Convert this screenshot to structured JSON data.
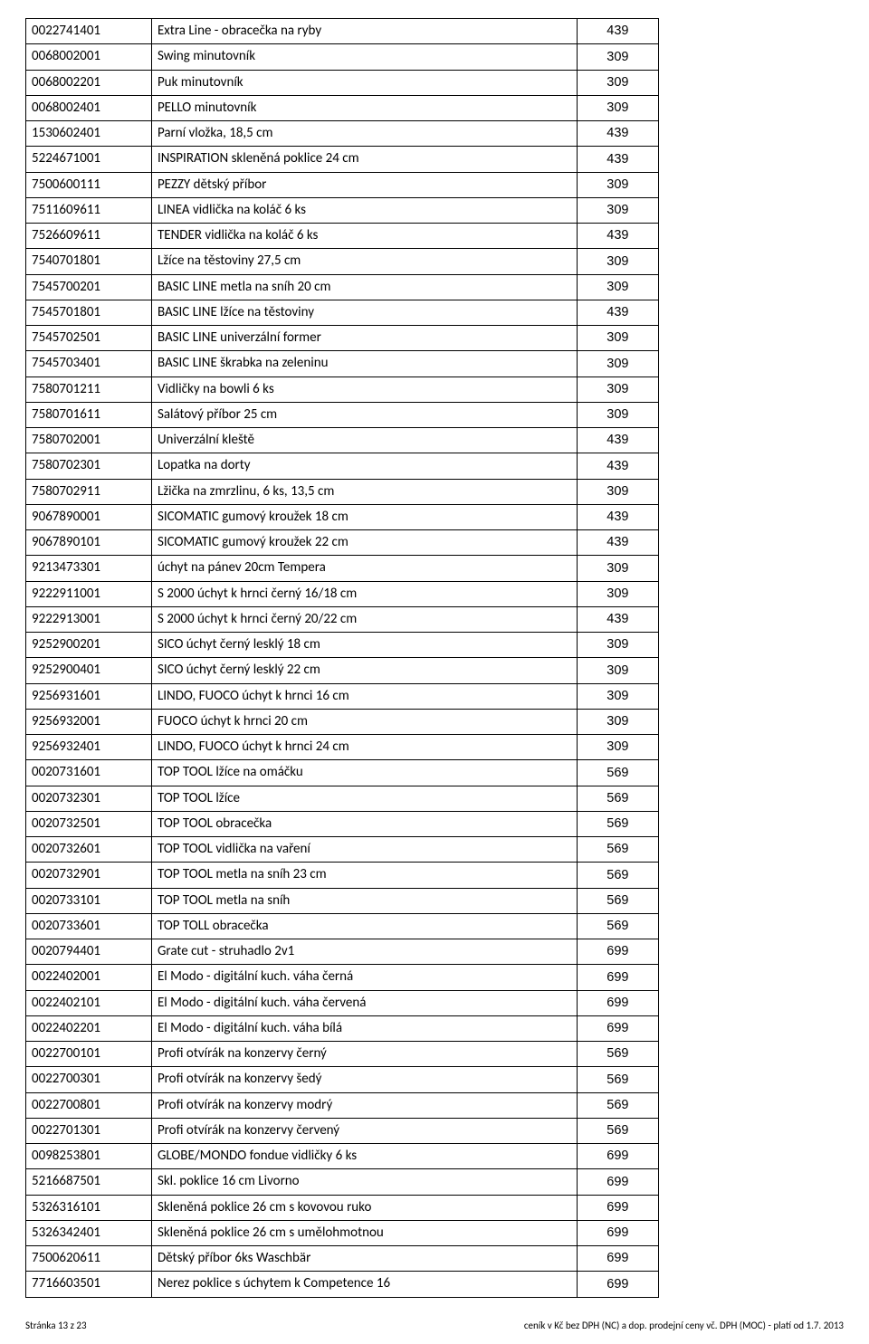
{
  "table": {
    "rows": [
      {
        "code": "0022741401",
        "desc": "Extra Line - obracečka na ryby",
        "price": "439"
      },
      {
        "code": "0068002001",
        "desc": "Swing minutovník",
        "price": "309"
      },
      {
        "code": "0068002201",
        "desc": "Puk minutovník",
        "price": "309"
      },
      {
        "code": "0068002401",
        "desc": "PELLO minutovník",
        "price": "309"
      },
      {
        "code": "1530602401",
        "desc": "Parní vložka, 18,5 cm",
        "price": "439"
      },
      {
        "code": "5224671001",
        "desc": "INSPIRATION skleněná poklice 24 cm",
        "price": "439"
      },
      {
        "code": "7500600111",
        "desc": "PEZZY dětský příbor",
        "price": "309"
      },
      {
        "code": "7511609611",
        "desc": "LINEA vidlička na koláč 6 ks",
        "price": "309"
      },
      {
        "code": "7526609611",
        "desc": "TENDER vidlička na koláč 6 ks",
        "price": "439"
      },
      {
        "code": "7540701801",
        "desc": "Lžíce na těstoviny 27,5 cm",
        "price": "309"
      },
      {
        "code": "7545700201",
        "desc": "BASIC LINE metla na sníh 20 cm",
        "price": "309"
      },
      {
        "code": "7545701801",
        "desc": "BASIC LINE lžíce na těstoviny",
        "price": "439"
      },
      {
        "code": "7545702501",
        "desc": "BASIC LINE univerzální former",
        "price": "309"
      },
      {
        "code": "7545703401",
        "desc": "BASIC LINE škrabka na zeleninu",
        "price": "309"
      },
      {
        "code": "7580701211",
        "desc": "Vidličky na bowli 6 ks",
        "price": "309"
      },
      {
        "code": "7580701611",
        "desc": "Salátový příbor 25 cm",
        "price": "309"
      },
      {
        "code": "7580702001",
        "desc": "Univerzální kleště",
        "price": "439"
      },
      {
        "code": "7580702301",
        "desc": "Lopatka na dorty",
        "price": "439"
      },
      {
        "code": "7580702911",
        "desc": "Lžička na zmrzlinu, 6 ks, 13,5 cm",
        "price": "309"
      },
      {
        "code": "9067890001",
        "desc": "SICOMATIC gumový kroužek 18 cm",
        "price": "439"
      },
      {
        "code": "9067890101",
        "desc": "SICOMATIC gumový kroužek 22 cm",
        "price": "439"
      },
      {
        "code": "9213473301",
        "desc": "úchyt na pánev 20cm Tempera",
        "price": "309"
      },
      {
        "code": "9222911001",
        "desc": "S 2000 úchyt k hrnci černý 16/18 cm",
        "price": "309"
      },
      {
        "code": "9222913001",
        "desc": "S 2000 úchyt k hrnci černý 20/22 cm",
        "price": "439"
      },
      {
        "code": "9252900201",
        "desc": "SICO úchyt černý lesklý 18 cm",
        "price": "309"
      },
      {
        "code": "9252900401",
        "desc": "SICO úchyt černý lesklý 22 cm",
        "price": "309"
      },
      {
        "code": "9256931601",
        "desc": "LINDO, FUOCO úchyt k hrnci 16 cm",
        "price": "309"
      },
      {
        "code": "9256932001",
        "desc": "FUOCO úchyt k hrnci 20 cm",
        "price": "309"
      },
      {
        "code": "9256932401",
        "desc": "LINDO, FUOCO úchyt k hrnci 24 cm",
        "price": "309"
      },
      {
        "code": "0020731601",
        "desc": "TOP TOOL lžíce na omáčku",
        "price": "569"
      },
      {
        "code": "0020732301",
        "desc": "TOP TOOL lžíce",
        "price": "569"
      },
      {
        "code": "0020732501",
        "desc": "TOP TOOL obracečka",
        "price": "569"
      },
      {
        "code": "0020732601",
        "desc": "TOP TOOL vidlička na vaření",
        "price": "569"
      },
      {
        "code": "0020732901",
        "desc": "TOP TOOL metla na sníh 23 cm",
        "price": "569"
      },
      {
        "code": "0020733101",
        "desc": "TOP TOOL metla na sníh",
        "price": "569"
      },
      {
        "code": "0020733601",
        "desc": "TOP TOLL obracečka",
        "price": "569"
      },
      {
        "code": "0020794401",
        "desc": "Grate cut - struhadlo 2v1",
        "price": "699"
      },
      {
        "code": "0022402001",
        "desc": "El Modo - digitální kuch. váha černá",
        "price": "699"
      },
      {
        "code": "0022402101",
        "desc": "El Modo - digitální kuch. váha červená",
        "price": "699"
      },
      {
        "code": "0022402201",
        "desc": "El Modo - digitální kuch. váha bílá",
        "price": "699"
      },
      {
        "code": "0022700101",
        "desc": "Profi otvírák na konzervy černý",
        "price": "569"
      },
      {
        "code": "0022700301",
        "desc": "Profi otvírák na konzervy šedý",
        "price": "569"
      },
      {
        "code": "0022700801",
        "desc": "Profi otvírák na konzervy modrý",
        "price": "569"
      },
      {
        "code": "0022701301",
        "desc": "Profi otvírák na konzervy červený",
        "price": "569"
      },
      {
        "code": "0098253801",
        "desc": "GLOBE/MONDO fondue vidličky 6 ks",
        "price": "699"
      },
      {
        "code": "5216687501",
        "desc": "Skl. poklice 16 cm Livorno",
        "price": "699"
      },
      {
        "code": "5326316101",
        "desc": "Skleněná poklice 26 cm s kovovou ruko",
        "price": "699"
      },
      {
        "code": "5326342401",
        "desc": "Skleněná poklice 26 cm s umělohmotnou",
        "price": "699"
      },
      {
        "code": "7500620611",
        "desc": "Dětský příbor 6ks Waschbär",
        "price": "699"
      },
      {
        "code": "7716603501",
        "desc": "Nerez poklice s úchytem k Competence 16",
        "price": "699"
      }
    ]
  },
  "footer": {
    "left": "Stránka 13 z 23",
    "right": "ceník v Kč bez DPH (NC) a dop. prodejní ceny vč. DPH (MOC) - platí od 1.7. 2013"
  }
}
